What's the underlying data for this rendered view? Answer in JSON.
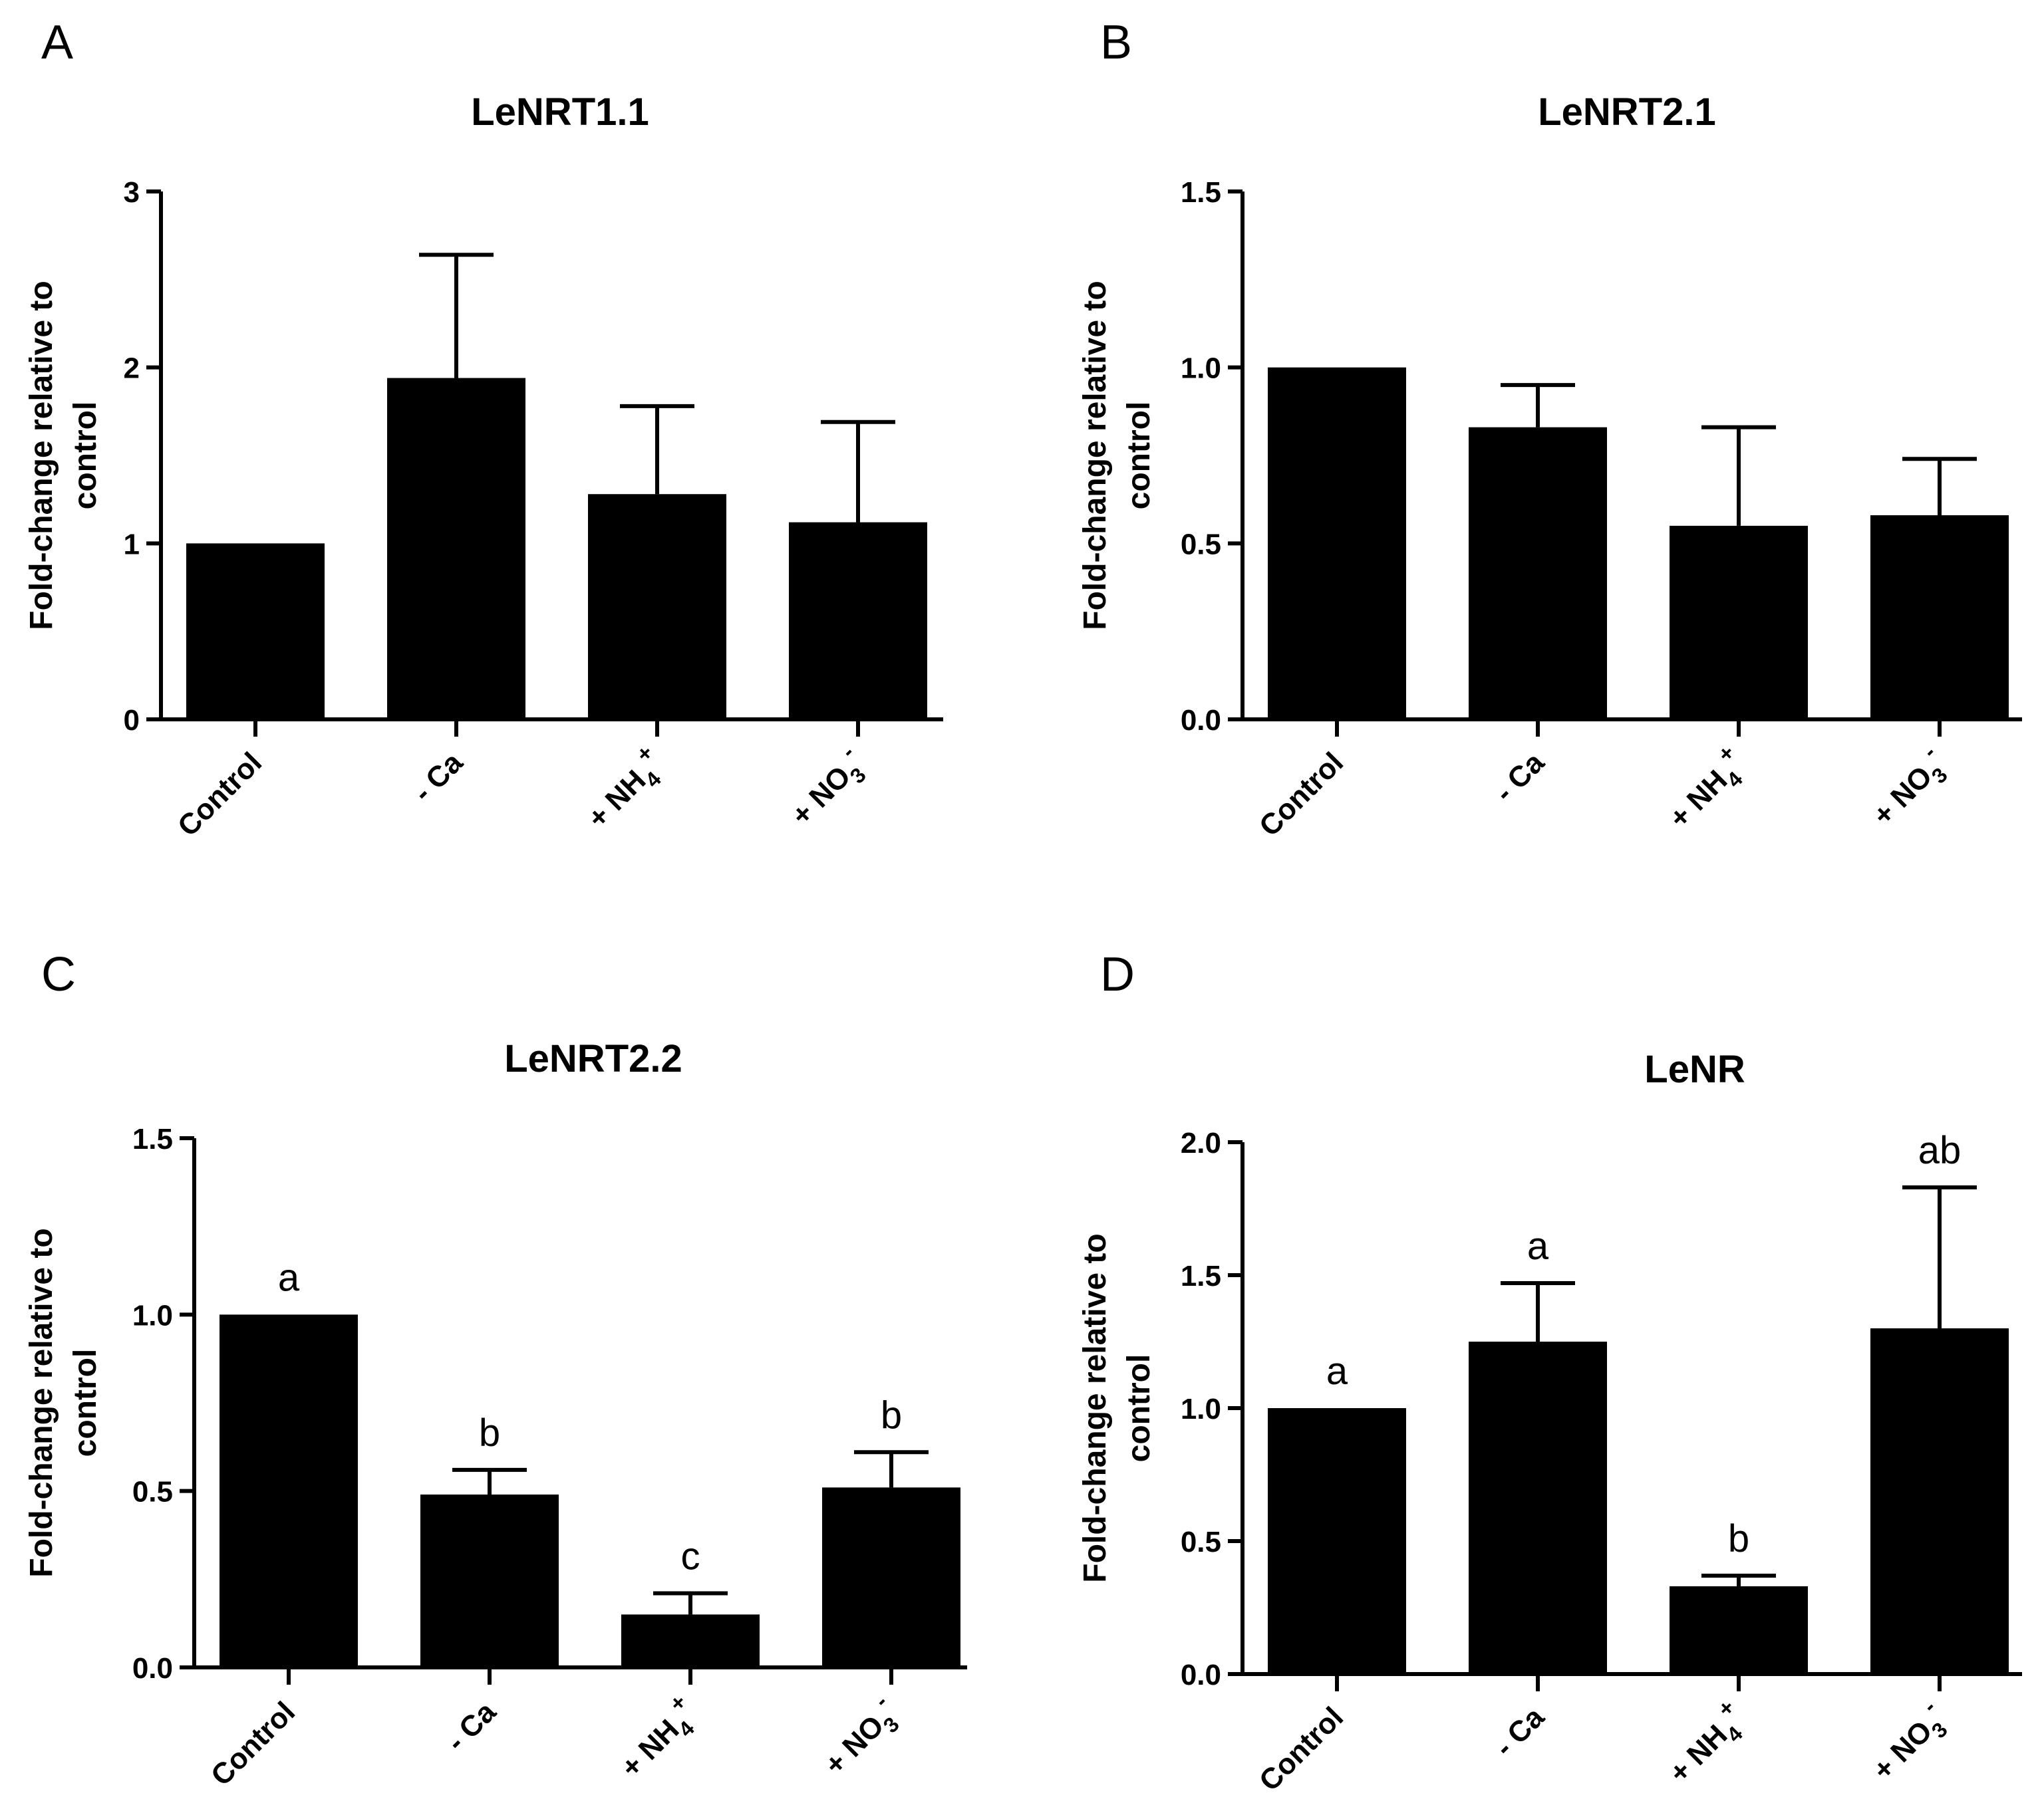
{
  "chart_data": [
    {
      "panel": "A",
      "type": "bar",
      "title": "LeNRT1.1",
      "ylabel_line1": "Fold-change relative to",
      "ylabel_line2": "control",
      "ylim": [
        0,
        3
      ],
      "yticks": [
        0,
        1,
        2,
        3
      ],
      "ytick_labels": [
        "0",
        "1",
        "2",
        "3"
      ],
      "categories": [
        {
          "main": "Control",
          "sub": "",
          "sup": ""
        },
        {
          "main": "- Ca",
          "sub": "",
          "sup": ""
        },
        {
          "main": "+ NH",
          "sub": "4",
          "sup": "+"
        },
        {
          "main": "+ NO",
          "sub": "3",
          "sup": "-"
        }
      ],
      "values": [
        1.0,
        1.94,
        1.28,
        1.12
      ],
      "errors": [
        0.0,
        0.7,
        0.5,
        0.57
      ],
      "letters": []
    },
    {
      "panel": "B",
      "type": "bar",
      "title": "LeNRT2.1",
      "ylabel_line1": "Fold-change relative to",
      "ylabel_line2": "control",
      "ylim": [
        0,
        1.5
      ],
      "yticks": [
        0,
        0.5,
        1.0,
        1.5
      ],
      "ytick_labels": [
        "0.0",
        "0.5",
        "1.0",
        "1.5"
      ],
      "categories": [
        {
          "main": "Control",
          "sub": "",
          "sup": ""
        },
        {
          "main": "- Ca",
          "sub": "",
          "sup": ""
        },
        {
          "main": "+ NH",
          "sub": "4",
          "sup": "+"
        },
        {
          "main": "+ NO",
          "sub": "3",
          "sup": "-"
        }
      ],
      "values": [
        1.0,
        0.83,
        0.55,
        0.58
      ],
      "errors": [
        0.0,
        0.12,
        0.28,
        0.16
      ],
      "letters": []
    },
    {
      "panel": "C",
      "type": "bar",
      "title": "LeNRT2.2",
      "ylabel_line1": "Fold-change relative to",
      "ylabel_line2": "control",
      "ylim": [
        0,
        1.5
      ],
      "yticks": [
        0,
        0.5,
        1.0,
        1.5
      ],
      "ytick_labels": [
        "0.0",
        "0.5",
        "1.0",
        "1.5"
      ],
      "categories": [
        {
          "main": "Control",
          "sub": "",
          "sup": ""
        },
        {
          "main": "- Ca",
          "sub": "",
          "sup": ""
        },
        {
          "main": "+ NH",
          "sub": "4",
          "sup": "+"
        },
        {
          "main": "+ NO",
          "sub": "3",
          "sup": "-"
        }
      ],
      "values": [
        1.0,
        0.49,
        0.15,
        0.51
      ],
      "errors": [
        0.0,
        0.07,
        0.06,
        0.1
      ],
      "letters": [
        "a",
        "b",
        "c",
        "b"
      ]
    },
    {
      "panel": "D",
      "type": "bar",
      "title": "LeNR",
      "ylabel_line1": "Fold-change relative to",
      "ylabel_line2": "control",
      "ylim": [
        0,
        2.0
      ],
      "yticks": [
        0,
        0.5,
        1.0,
        1.5,
        2.0
      ],
      "ytick_labels": [
        "0.0",
        "0.5",
        "1.0",
        "1.5",
        "2.0"
      ],
      "categories": [
        {
          "main": "Control",
          "sub": "",
          "sup": ""
        },
        {
          "main": "- Ca",
          "sub": "",
          "sup": ""
        },
        {
          "main": "+ NH",
          "sub": "4",
          "sup": "+"
        },
        {
          "main": "+ NO",
          "sub": "3",
          "sup": "-"
        }
      ],
      "values": [
        1.0,
        1.25,
        0.33,
        1.3
      ],
      "errors": [
        0.0,
        0.22,
        0.04,
        0.53
      ],
      "letters": [
        "a",
        "a",
        "b",
        "ab"
      ]
    }
  ]
}
